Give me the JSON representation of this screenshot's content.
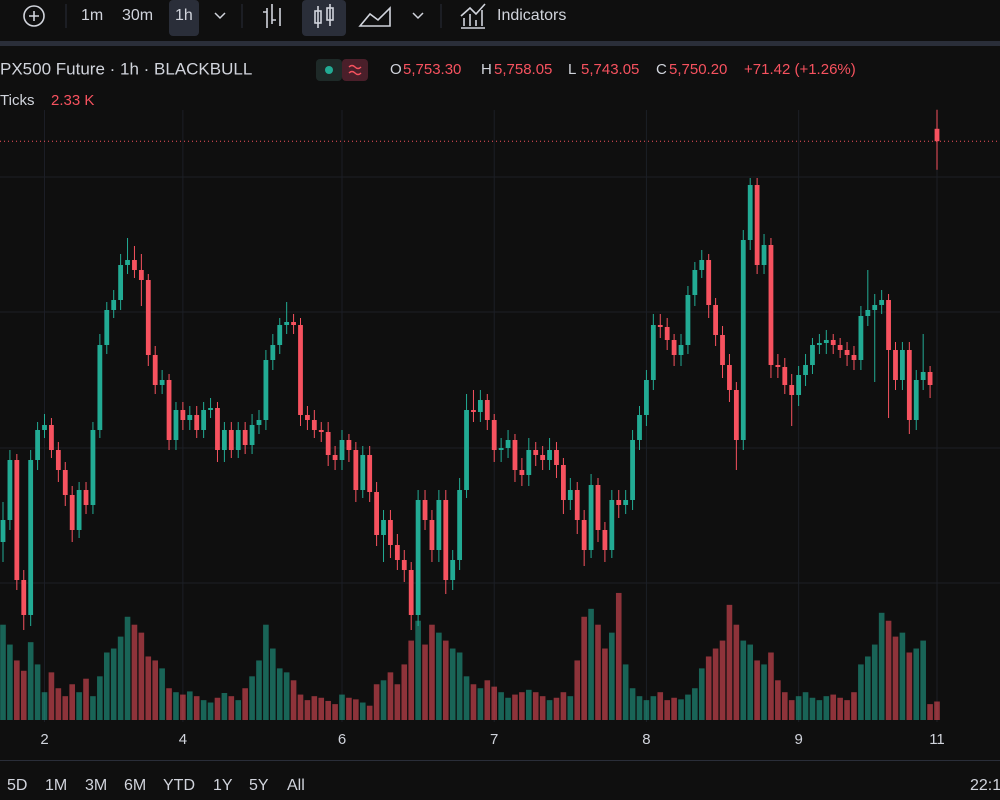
{
  "toolbar": {
    "intervals": [
      "1m",
      "30m",
      "1h"
    ],
    "indicators": "Indicators"
  },
  "header": {
    "symbol": "PX500 Future · 1h · BLACKBULL",
    "ohlc": [
      {
        "key": "O",
        "value": "5,753.30"
      },
      {
        "key": "H",
        "value": "5,758.05"
      },
      {
        "key": "L",
        "value": "5,743.05"
      },
      {
        "key": "C",
        "value": "5,750.20"
      }
    ],
    "change": "+71.42 (+1.26%)",
    "volume_name": "Ticks",
    "volume_value": "2.33 K"
  },
  "chart_data": {
    "type": "candlestick",
    "categories": [
      null,
      null,
      null,
      null,
      null,
      null,
      "2",
      null,
      null,
      null,
      null,
      null,
      null,
      null,
      null,
      null,
      null,
      null,
      null,
      null,
      null,
      null,
      null,
      null,
      null,
      null,
      "4",
      null,
      null,
      null,
      null,
      null,
      null,
      null,
      null,
      null,
      null,
      null,
      null,
      null,
      null,
      null,
      null,
      null,
      null,
      null,
      null,
      null,
      null,
      "6",
      null,
      null,
      null,
      null,
      null,
      null,
      null,
      null,
      null,
      null,
      null,
      null,
      null,
      null,
      null,
      null,
      null,
      null,
      null,
      null,
      null,
      "7",
      null,
      null,
      null,
      null,
      null,
      null,
      null,
      null,
      null,
      null,
      null,
      null,
      null,
      null,
      null,
      null,
      null,
      null,
      null,
      null,
      null,
      "8",
      null,
      null,
      null,
      null,
      null,
      null,
      null,
      null,
      null,
      null,
      null,
      null,
      null,
      null,
      null,
      null,
      null,
      null,
      null,
      null,
      null,
      "9",
      null,
      null,
      null,
      null,
      null,
      null,
      null,
      null,
      null,
      null,
      null,
      null,
      null,
      null,
      null,
      null,
      null,
      null,
      null,
      "11"
    ],
    "candles": [
      [
        5650,
        5660,
        5645,
        5655.5
      ],
      [
        5655.5,
        5673,
        5653,
        5670.5
      ],
      [
        5670.5,
        5672,
        5638,
        5640.5
      ],
      [
        5640.5,
        5643,
        5628,
        5631.75
      ],
      [
        5631.75,
        5673,
        5629,
        5670.5
      ],
      [
        5670.5,
        5680,
        5668,
        5678
      ],
      [
        5678,
        5682,
        5676,
        5679.25
      ],
      [
        5679.25,
        5681,
        5671,
        5673
      ],
      [
        5673,
        5675,
        5665,
        5668
      ],
      [
        5668,
        5670,
        5659,
        5661.75
      ],
      [
        5661.75,
        5664,
        5650,
        5653
      ],
      [
        5653,
        5665,
        5651,
        5663
      ],
      [
        5663,
        5665,
        5657,
        5659.25
      ],
      [
        5659.25,
        5680,
        5657,
        5678
      ],
      [
        5678,
        5702,
        5676,
        5699.25
      ],
      [
        5699.25,
        5710,
        5697,
        5708
      ],
      [
        5708,
        5713,
        5706,
        5710.5
      ],
      [
        5710.5,
        5722,
        5708,
        5719.25
      ],
      [
        5719.25,
        5726,
        5717,
        5720.5
      ],
      [
        5720.5,
        5724,
        5716,
        5718
      ],
      [
        5718,
        5722,
        5709,
        5715.5
      ],
      [
        5715.5,
        5717,
        5694,
        5696.75
      ],
      [
        5696.75,
        5699,
        5687,
        5689.25
      ],
      [
        5689.25,
        5693,
        5687,
        5690.5
      ],
      [
        5690.5,
        5692,
        5673,
        5675.5
      ],
      [
        5675.5,
        5685,
        5673,
        5683
      ],
      [
        5683,
        5685,
        5678,
        5680.5
      ],
      [
        5680.5,
        5684,
        5678,
        5681.75
      ],
      [
        5681.75,
        5684,
        5676,
        5678
      ],
      [
        5678,
        5685,
        5676,
        5683
      ],
      [
        5683,
        5686,
        5681,
        5683.5
      ],
      [
        5683.5,
        5685,
        5670,
        5673
      ],
      [
        5673,
        5680,
        5670,
        5678
      ],
      [
        5678,
        5680,
        5671,
        5673
      ],
      [
        5673,
        5680,
        5671,
        5678
      ],
      [
        5678,
        5680,
        5672,
        5674.25
      ],
      [
        5674.25,
        5682,
        5672,
        5679.25
      ],
      [
        5679.25,
        5683,
        5677,
        5680.5
      ],
      [
        5680.5,
        5698,
        5678,
        5695.5
      ],
      [
        5695.5,
        5702,
        5693,
        5699.25
      ],
      [
        5699.25,
        5706,
        5697,
        5704.25
      ],
      [
        5704.25,
        5710,
        5702,
        5705
      ],
      [
        5705,
        5707,
        5702,
        5704.25
      ],
      [
        5704.25,
        5706,
        5679,
        5681.75
      ],
      [
        5681.75,
        5684,
        5678,
        5680.5
      ],
      [
        5680.5,
        5683,
        5676,
        5678
      ],
      [
        5678,
        5680,
        5675,
        5677.5
      ],
      [
        5677.5,
        5680,
        5669,
        5671.75
      ],
      [
        5671.75,
        5674,
        5668,
        5670.5
      ],
      [
        5670.5,
        5678,
        5668,
        5675.5
      ],
      [
        5675.5,
        5677,
        5670,
        5673
      ],
      [
        5673,
        5675,
        5660,
        5663
      ],
      [
        5663,
        5674,
        5661,
        5671.75
      ],
      [
        5671.75,
        5674,
        5660,
        5662.5
      ],
      [
        5662.5,
        5665,
        5649,
        5651.75
      ],
      [
        5651.75,
        5658,
        5645,
        5655.5
      ],
      [
        5655.5,
        5658,
        5646,
        5649.25
      ],
      [
        5649.25,
        5652,
        5643,
        5645.5
      ],
      [
        5645.5,
        5648,
        5640,
        5643
      ],
      [
        5643,
        5645,
        5628,
        5631.75
      ],
      [
        5631.75,
        5663,
        5629,
        5660.5
      ],
      [
        5660.5,
        5663,
        5653,
        5655.5
      ],
      [
        5655.5,
        5658,
        5645,
        5648
      ],
      [
        5648,
        5663,
        5645,
        5660.5
      ],
      [
        5660.5,
        5663,
        5637,
        5640.5
      ],
      [
        5640.5,
        5648,
        5638,
        5645.5
      ],
      [
        5645.5,
        5666,
        5643,
        5663
      ],
      [
        5663,
        5687,
        5661,
        5683
      ],
      [
        5683,
        5688,
        5680,
        5682.5
      ],
      [
        5682.5,
        5688,
        5680,
        5685.5
      ],
      [
        5685.5,
        5687,
        5678,
        5680.5
      ],
      [
        5680.5,
        5682,
        5670,
        5673
      ],
      [
        5673,
        5676,
        5670,
        5673.5
      ],
      [
        5673.5,
        5678,
        5671,
        5675.5
      ],
      [
        5675.5,
        5677,
        5665,
        5668
      ],
      [
        5668,
        5671,
        5664,
        5666.75
      ],
      [
        5666.75,
        5676,
        5664,
        5673
      ],
      [
        5673,
        5675,
        5669,
        5671.75
      ],
      [
        5671.75,
        5674,
        5668,
        5670.5
      ],
      [
        5670.5,
        5676,
        5668,
        5673
      ],
      [
        5673,
        5675,
        5666,
        5669.25
      ],
      [
        5669.25,
        5671,
        5657,
        5660.5
      ],
      [
        5660.5,
        5666,
        5658,
        5663
      ],
      [
        5663,
        5665,
        5652,
        5655.5
      ],
      [
        5655.5,
        5658,
        5644,
        5648
      ],
      [
        5648,
        5667,
        5646,
        5664.25
      ],
      [
        5664.25,
        5666,
        5650,
        5653
      ],
      [
        5653,
        5655,
        5645,
        5648
      ],
      [
        5648,
        5663,
        5646,
        5660.5
      ],
      [
        5660.5,
        5663,
        5656,
        5659.25
      ],
      [
        5659.25,
        5663,
        5657,
        5660.5
      ],
      [
        5660.5,
        5678,
        5658,
        5675.5
      ],
      [
        5675.5,
        5684,
        5673,
        5681.75
      ],
      [
        5681.75,
        5693,
        5679,
        5690.5
      ],
      [
        5690.5,
        5707,
        5688,
        5704.25
      ],
      [
        5704.25,
        5707,
        5701,
        5703.75
      ],
      [
        5703.75,
        5706,
        5698,
        5700.5
      ],
      [
        5700.5,
        5702,
        5694,
        5696.75
      ],
      [
        5696.75,
        5702,
        5694,
        5699.25
      ],
      [
        5699.25,
        5714,
        5697,
        5711.75
      ],
      [
        5711.75,
        5720,
        5709,
        5718
      ],
      [
        5718,
        5723,
        5716,
        5720.5
      ],
      [
        5720.5,
        5722,
        5706,
        5709.25
      ],
      [
        5709.25,
        5711,
        5699,
        5701.75
      ],
      [
        5701.75,
        5704,
        5691,
        5694.25
      ],
      [
        5694.25,
        5697,
        5685,
        5688
      ],
      [
        5688,
        5690,
        5668,
        5675.5
      ],
      [
        5675.5,
        5728,
        5673,
        5725.5
      ],
      [
        5725.5,
        5741,
        5723,
        5739.25
      ],
      [
        5739.25,
        5741,
        5717,
        5719.25
      ],
      [
        5719.25,
        5727,
        5717,
        5724.25
      ],
      [
        5724.25,
        5726,
        5691,
        5694.25
      ],
      [
        5694.25,
        5697,
        5691,
        5693.75
      ],
      [
        5693.75,
        5696,
        5687,
        5689.25
      ],
      [
        5689.25,
        5692,
        5679,
        5686.75
      ],
      [
        5686.75,
        5694,
        5684,
        5691.75
      ],
      [
        5691.75,
        5697,
        5689,
        5694.25
      ],
      [
        5694.25,
        5701,
        5692,
        5699.25
      ],
      [
        5699.25,
        5702,
        5697,
        5699.75
      ],
      [
        5699.75,
        5703,
        5697,
        5700.5
      ],
      [
        5700.5,
        5702,
        5697,
        5699.25
      ],
      [
        5699.25,
        5701,
        5696,
        5698
      ],
      [
        5698,
        5700,
        5694,
        5696.75
      ],
      [
        5696.75,
        5699,
        5693,
        5695.5
      ],
      [
        5695.5,
        5709,
        5693,
        5706.5
      ],
      [
        5706.5,
        5718,
        5704,
        5708
      ],
      [
        5708,
        5712,
        5690,
        5709.25
      ],
      [
        5709.25,
        5713,
        5707,
        5710.5
      ],
      [
        5710.5,
        5712,
        5681,
        5698
      ],
      [
        5698,
        5700,
        5688,
        5690.5
      ],
      [
        5690.5,
        5700,
        5688,
        5698
      ],
      [
        5698,
        5700,
        5677,
        5680.5
      ],
      [
        5680.5,
        5693,
        5678,
        5690.5
      ],
      [
        5690.5,
        5702,
        5688,
        5692.5
      ],
      [
        5692.5,
        5694,
        5686,
        5689.25
      ],
      [
        5753.3,
        5758.05,
        5743.05,
        5750.2
      ]
    ],
    "volume": [
      12000,
      9500,
      7500,
      6200,
      9800,
      7000,
      3500,
      6000,
      4000,
      3000,
      4500,
      3500,
      5200,
      3000,
      5500,
      8500,
      9000,
      10500,
      13000,
      12000,
      11000,
      8000,
      7500,
      6500,
      4000,
      3500,
      3200,
      3600,
      3000,
      2500,
      2200,
      2800,
      3400,
      3000,
      2500,
      4000,
      5500,
      7500,
      12000,
      9000,
      6500,
      6000,
      5000,
      3200,
      2500,
      3000,
      2800,
      2400,
      2000,
      3200,
      2800,
      2600,
      2200,
      1800,
      4500,
      5000,
      6000,
      4500,
      7000,
      10000,
      12500,
      9500,
      12000,
      11000,
      10000,
      9000,
      8500,
      5500,
      4500,
      4000,
      5000,
      4200,
      3500,
      2800,
      3200,
      3500,
      3800,
      3500,
      3000,
      2500,
      2800,
      3500,
      3000,
      7500,
      13000,
      14000,
      12000,
      9000,
      11000,
      16000,
      7000,
      4000,
      3000,
      2500,
      3000,
      3500,
      2500,
      2800,
      2600,
      3200,
      4000,
      6500,
      8000,
      9000,
      10000,
      14500,
      12000,
      10000,
      9500,
      7500,
      7000,
      8500,
      5000,
      3500,
      2500,
      3000,
      3500,
      2800,
      2500,
      3000,
      3200,
      2800,
      2500,
      3500,
      7000,
      8000,
      9500,
      13500,
      12500,
      10500,
      11000,
      8500,
      9000,
      10000,
      2000,
      2330
    ],
    "ylim": [
      5625,
      5760
    ],
    "volume_lim": [
      0,
      17000
    ],
    "up_color": "#22ab94",
    "down_color": "#f7525f"
  },
  "footer": {
    "ranges": [
      "5D",
      "1M",
      "3M",
      "6M",
      "YTD",
      "1Y",
      "5Y",
      "All"
    ],
    "time": "22:1"
  }
}
